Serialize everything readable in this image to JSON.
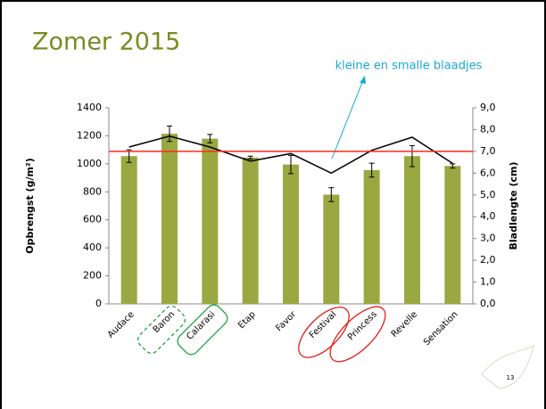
{
  "chart_data": {
    "type": "bar",
    "title": "Zomer 2015",
    "annotation": "kleine en smalle blaadjes",
    "page_number": "13",
    "categories": [
      "Audace",
      "Baron",
      "Calarasi",
      "Etap",
      "Favor",
      "Festival",
      "Princess",
      "Revelle",
      "Sensation"
    ],
    "series": [
      {
        "name": "Opbrengst",
        "color": "#9aa842",
        "values": [
          1055,
          1215,
          1180,
          1045,
          995,
          780,
          955,
          1055,
          985
        ],
        "errors": [
          45,
          55,
          30,
          10,
          65,
          50,
          50,
          75,
          15
        ]
      },
      {
        "name": "Bladlengte",
        "type": "line",
        "axis": "y2",
        "color": "#000000",
        "values": [
          7.2,
          7.7,
          7.2,
          6.55,
          6.9,
          6.0,
          7.05,
          7.65,
          6.45
        ]
      }
    ],
    "reference_line": {
      "value": 7.0,
      "axis": "y2",
      "color": "#ff2a1a"
    },
    "ylabel": "Opbrengst (g/m²)",
    "y2label": "Bladlengte (cm)",
    "ylim": [
      0,
      1400
    ],
    "yticks": [
      0,
      200,
      400,
      600,
      800,
      1000,
      1200,
      1400
    ],
    "y2lim": [
      0,
      9
    ],
    "y2ticks": [
      {
        "value": 0,
        "label": "0,0"
      },
      {
        "value": 1,
        "label": "1,0"
      },
      {
        "value": 2,
        "label": "2,0"
      },
      {
        "value": 3,
        "label": "3,0"
      },
      {
        "value": 4,
        "label": "4,0"
      },
      {
        "value": 5,
        "label": "5,0"
      },
      {
        "value": 6,
        "label": "6,0"
      },
      {
        "value": 7,
        "label": "7,0"
      },
      {
        "value": 8,
        "label": "8,0"
      },
      {
        "value": 9,
        "label": "9,0"
      }
    ]
  }
}
